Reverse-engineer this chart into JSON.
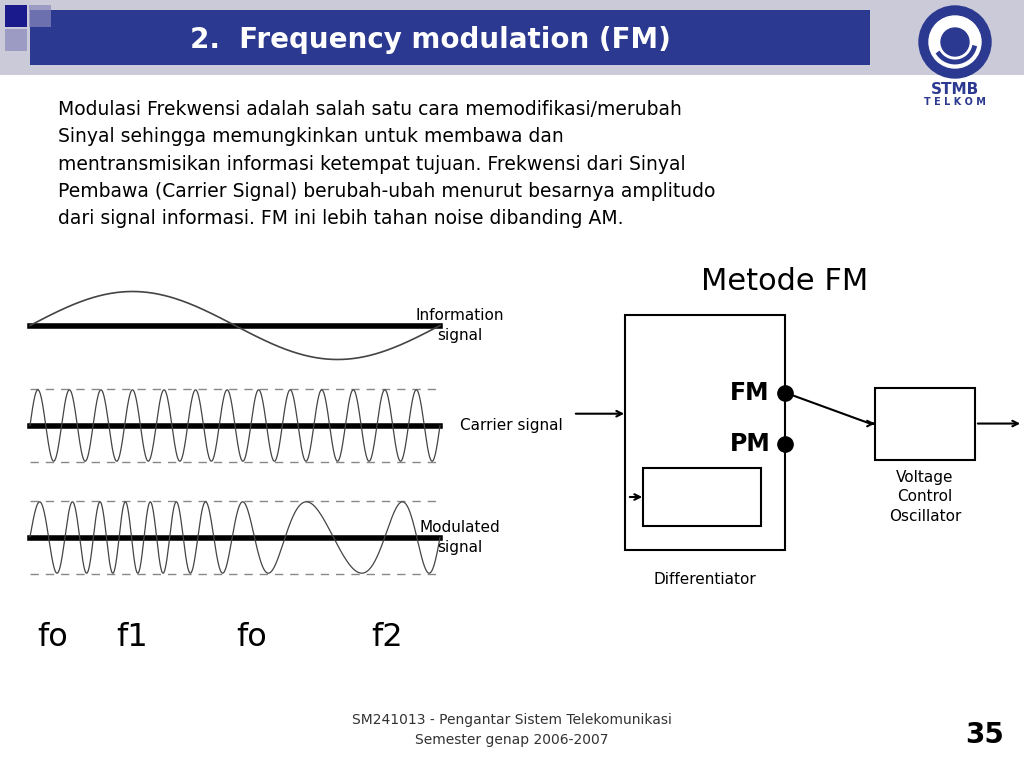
{
  "title": "2.  Frequency modulation (FM)",
  "title_bg_color": "#2B3990",
  "title_text_color": "#FFFFFF",
  "bg_color": "#FFFFFF",
  "body_text": "Modulasi Frekwensi adalah salah satu cara memodifikasi/merubah\nSinyal sehingga memungkinkan untuk membawa dan\nmentransmisikan informasi ketempat tujuan. Frekwensi dari Sinyal\nPembawa (Carrier Signal) berubah-ubah menurut besarnya amplitudo\ndari signal informasi. FM ini lebih tahan noise dibanding AM.",
  "label_info": "Information\nsignal",
  "label_carrier": "Carrier signal",
  "label_modulated": "Modulated\nsignal",
  "label_metode": "Metode FM",
  "label_FM": "FM",
  "label_PM": "PM",
  "label_VCO": "Voltage\nControl\nOscillator",
  "label_diff": "Differentiator",
  "freq_labels": [
    "fo",
    "f1",
    "fo",
    "f2"
  ],
  "footer": "SM241013 - Pengantar Sistem Telekomunikasi\nSemester genap 2006-2007",
  "page_num": "35",
  "stmb_text": "STMB",
  "telkom_text": "T E L K O M"
}
